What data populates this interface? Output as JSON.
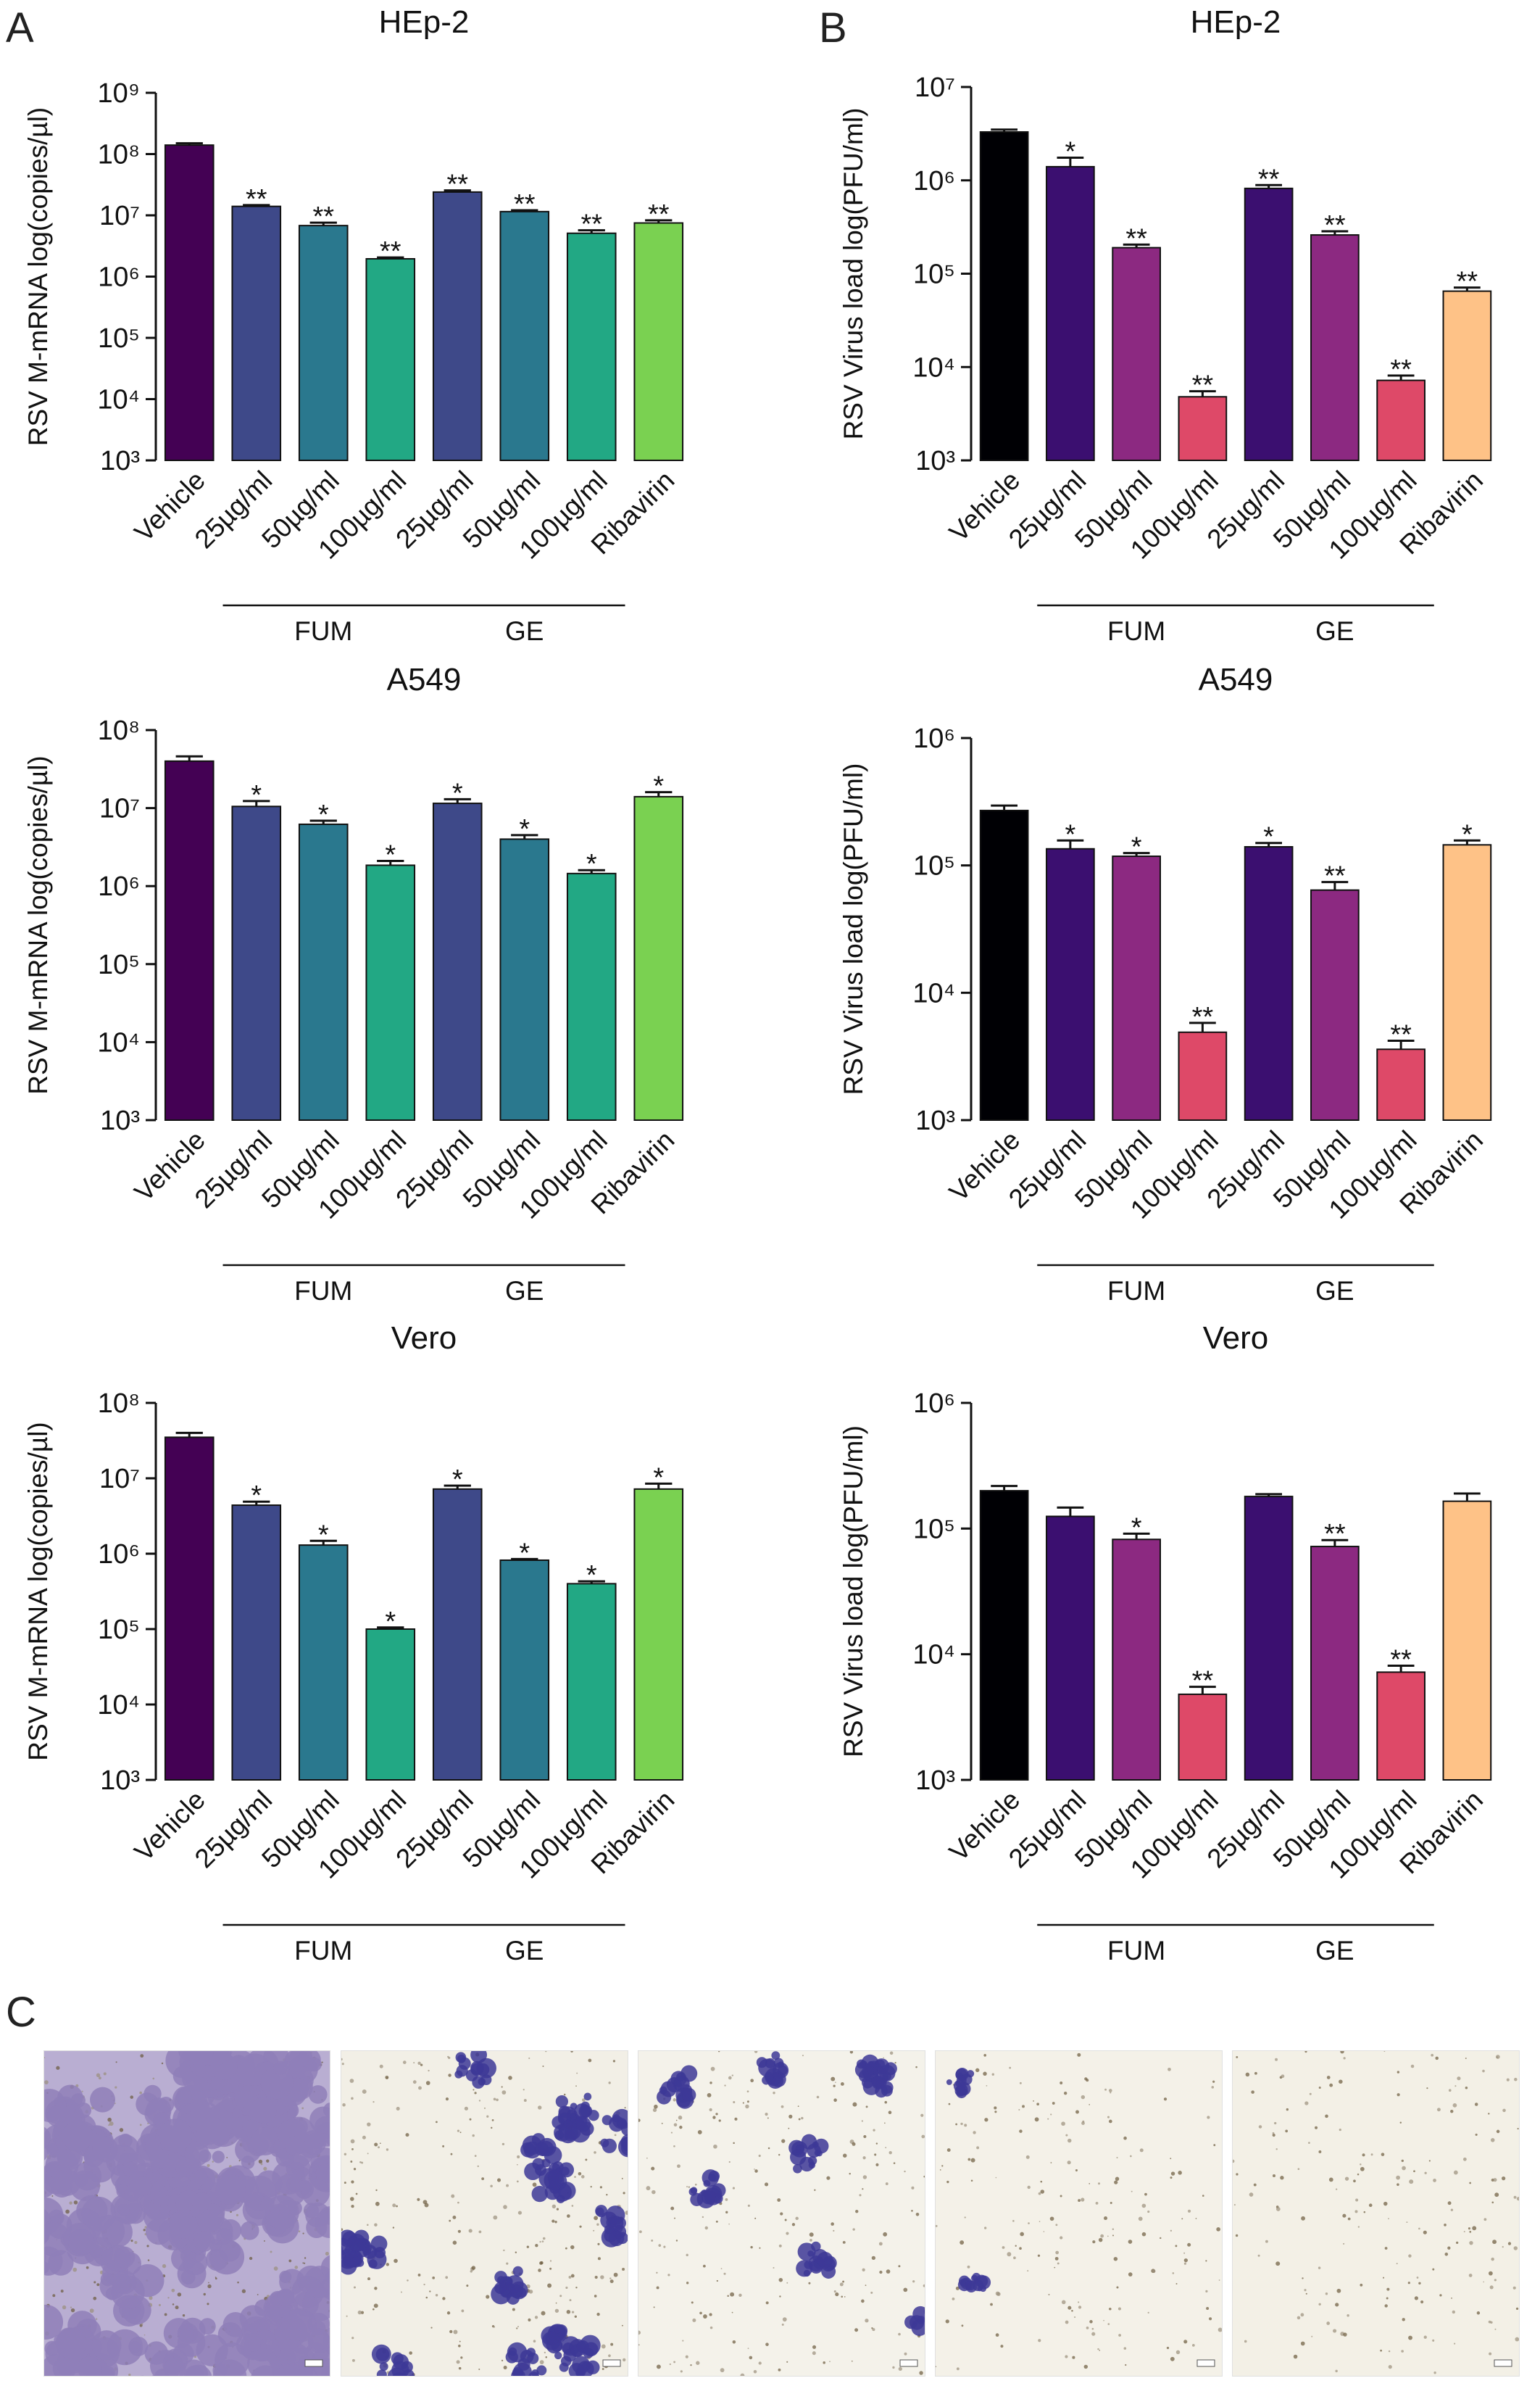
{
  "figure": {
    "panel_labels": [
      "A",
      "B",
      "C"
    ],
    "group_labels": [
      "FUM",
      "GE"
    ]
  },
  "chart_data": [
    {
      "id": "A1",
      "type": "bar",
      "scale": "log",
      "title": "HEp-2",
      "ylabel": "RSV M-mRNA log(copies/µl)",
      "ylim_exp": [
        3,
        9
      ],
      "categories": [
        "Vehicle",
        "25µg/ml",
        "50µg/ml",
        "100µg/ml",
        "25µg/ml",
        "50µg/ml",
        "100µg/ml",
        "Ribavirin"
      ],
      "values": [
        140000000,
        14000000,
        6800000,
        1950000,
        24000000,
        11500000,
        5100000,
        7500000
      ],
      "errors": [
        10000000,
        700000,
        800000,
        100000,
        1500000,
        600000,
        600000,
        800000
      ],
      "significance": [
        "",
        "**",
        "**",
        "**",
        "**",
        "**",
        "**",
        "**"
      ],
      "colors": [
        "#440154",
        "#3e4989",
        "#2a788e",
        "#22a884",
        "#3e4989",
        "#2a788e",
        "#22a884",
        "#7ad151"
      ]
    },
    {
      "id": "B1",
      "type": "bar",
      "scale": "log",
      "title": "HEp-2",
      "ylabel": "RSV Virus load log(PFU/ml)",
      "ylim_exp": [
        3,
        7
      ],
      "categories": [
        "Vehicle",
        "25µg/ml",
        "50µg/ml",
        "100µg/ml",
        "25µg/ml",
        "50µg/ml",
        "100µg/ml",
        "Ribavirin"
      ],
      "values": [
        3300000,
        1400000,
        190000,
        4800,
        820000,
        260000,
        7200,
        65000
      ],
      "errors": [
        200000,
        350000,
        15000,
        700,
        70000,
        25000,
        900,
        6000
      ],
      "significance": [
        "",
        "*",
        "**",
        "**",
        "**",
        "**",
        "**",
        "**"
      ],
      "colors": [
        "#000004",
        "#3b0f70",
        "#8c2981",
        "#de4968",
        "#3b0f70",
        "#8c2981",
        "#de4968",
        "#fec287"
      ]
    },
    {
      "id": "A2",
      "type": "bar",
      "scale": "log",
      "title": "A549",
      "ylabel": "RSV M-mRNA log(copies/µl)",
      "ylim_exp": [
        3,
        8
      ],
      "categories": [
        "Vehicle",
        "25µg/ml",
        "50µg/ml",
        "100µg/ml",
        "25µg/ml",
        "50µg/ml",
        "100µg/ml",
        "Ribavirin"
      ],
      "values": [
        40000000,
        10500000,
        6200000,
        1850000,
        11500000,
        4000000,
        1450000,
        14000000
      ],
      "errors": [
        6000000,
        1800000,
        700000,
        250000,
        1500000,
        500000,
        150000,
        2000000
      ],
      "significance": [
        "",
        "*",
        "*",
        "*",
        "*",
        "*",
        "*",
        "*"
      ],
      "colors": [
        "#440154",
        "#3e4989",
        "#2a788e",
        "#22a884",
        "#3e4989",
        "#2a788e",
        "#22a884",
        "#7ad151"
      ]
    },
    {
      "id": "B2",
      "type": "bar",
      "scale": "log",
      "title": "A549",
      "ylabel": "RSV Virus load log(PFU/ml)",
      "ylim_exp": [
        3,
        6
      ],
      "categories": [
        "Vehicle",
        "25µg/ml",
        "50µg/ml",
        "100µg/ml",
        "25µg/ml",
        "50µg/ml",
        "100µg/ml",
        "Ribavirin"
      ],
      "values": [
        270000,
        135000,
        118000,
        4900,
        140000,
        64000,
        3600,
        145000
      ],
      "errors": [
        25000,
        22000,
        7000,
        900,
        10000,
        10000,
        600,
        12000
      ],
      "significance": [
        "",
        "*",
        "*",
        "**",
        "*",
        "**",
        "**",
        "*"
      ],
      "colors": [
        "#000004",
        "#3b0f70",
        "#8c2981",
        "#de4968",
        "#3b0f70",
        "#8c2981",
        "#de4968",
        "#fec287"
      ]
    },
    {
      "id": "A3",
      "type": "bar",
      "scale": "log",
      "title": "Vero",
      "ylabel": "RSV M-mRNA log(copies/µl)",
      "ylim_exp": [
        3,
        8
      ],
      "categories": [
        "Vehicle",
        "25µg/ml",
        "50µg/ml",
        "100µg/ml",
        "25µg/ml",
        "50µg/ml",
        "100µg/ml",
        "Ribavirin"
      ],
      "values": [
        35000000,
        4400000,
        1300000,
        100000,
        7200000,
        820000,
        400000,
        7200000
      ],
      "errors": [
        5000000,
        500000,
        180000,
        5000,
        800000,
        30000,
        30000,
        1300000
      ],
      "significance": [
        "",
        "*",
        "*",
        "*",
        "*",
        "*",
        "*",
        "*"
      ],
      "colors": [
        "#440154",
        "#3e4989",
        "#2a788e",
        "#22a884",
        "#3e4989",
        "#2a788e",
        "#22a884",
        "#7ad151"
      ]
    },
    {
      "id": "B3",
      "type": "bar",
      "scale": "log",
      "title": "Vero",
      "ylabel": "RSV Virus load log(PFU/ml)",
      "ylim_exp": [
        3,
        6
      ],
      "categories": [
        "Vehicle",
        "25µg/ml",
        "50µg/ml",
        "100µg/ml",
        "25µg/ml",
        "50µg/ml",
        "100µg/ml",
        "Ribavirin"
      ],
      "values": [
        200000,
        125000,
        82000,
        4800,
        180000,
        72000,
        7200,
        165000
      ],
      "errors": [
        18000,
        22000,
        9000,
        700,
        8000,
        9000,
        900,
        25000
      ],
      "significance": [
        "",
        "",
        "*",
        "**",
        "",
        "**",
        "**",
        ""
      ],
      "colors": [
        "#000004",
        "#3b0f70",
        "#8c2981",
        "#de4968",
        "#3b0f70",
        "#8c2981",
        "#de4968",
        "#fec287"
      ]
    }
  ],
  "micrographs": [
    {
      "name": "micrograph-vehicle"
    },
    {
      "name": "micrograph-2"
    },
    {
      "name": "micrograph-3"
    },
    {
      "name": "micrograph-4"
    },
    {
      "name": "micrograph-5"
    }
  ]
}
